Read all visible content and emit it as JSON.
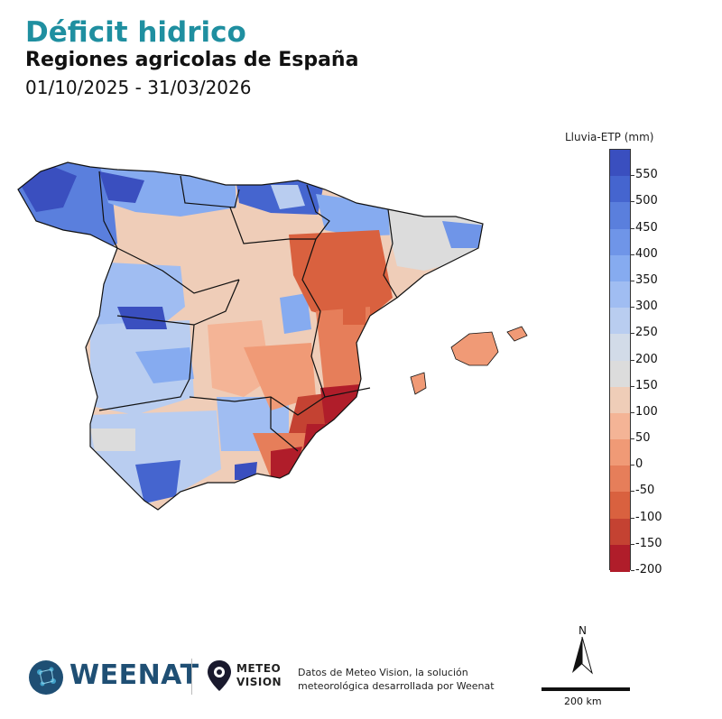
{
  "header": {
    "title": "Déficit hidrico",
    "subtitle": "Regiones agricolas de España",
    "date_range": "01/10/2025 - 31/03/2026"
  },
  "legend": {
    "title": "Lluvia-ETP (mm)",
    "labels": [
      "550",
      "500",
      "450",
      "400",
      "350",
      "300",
      "250",
      "200",
      "150",
      "100",
      "50",
      "0",
      "-50",
      "-100",
      "-150",
      "-200"
    ],
    "colors": [
      "#3a4fbf",
      "#4565cf",
      "#5a7fdd",
      "#6f95e8",
      "#86abf0",
      "#a0bdf2",
      "#b9cdf0",
      "#d2dbe8",
      "#dcdcdc",
      "#efcdb8",
      "#f4b496",
      "#f09a76",
      "#e67e5a",
      "#d9613f",
      "#c44232",
      "#b01d2a"
    ]
  },
  "map": {
    "region": "España peninsular y Baleares",
    "colors": {
      "blue_dark": "#3a4fbf",
      "blue": "#5a7fdd",
      "blue_light": "#a0bdf2",
      "neutral": "#dcdcdc",
      "peach": "#efcdb8",
      "salmon": "#f09a76",
      "red": "#d9613f",
      "red_dark": "#b01d2a"
    }
  },
  "footer": {
    "brand": "WEENAT",
    "meteo_line1": "METEO",
    "meteo_line2": "VISION",
    "credit_line1": "Datos de Meteo Vision, la solución",
    "credit_line2": "meteorológica desarrollada por Weenat",
    "north_label": "N",
    "scale_label": "200 km"
  }
}
